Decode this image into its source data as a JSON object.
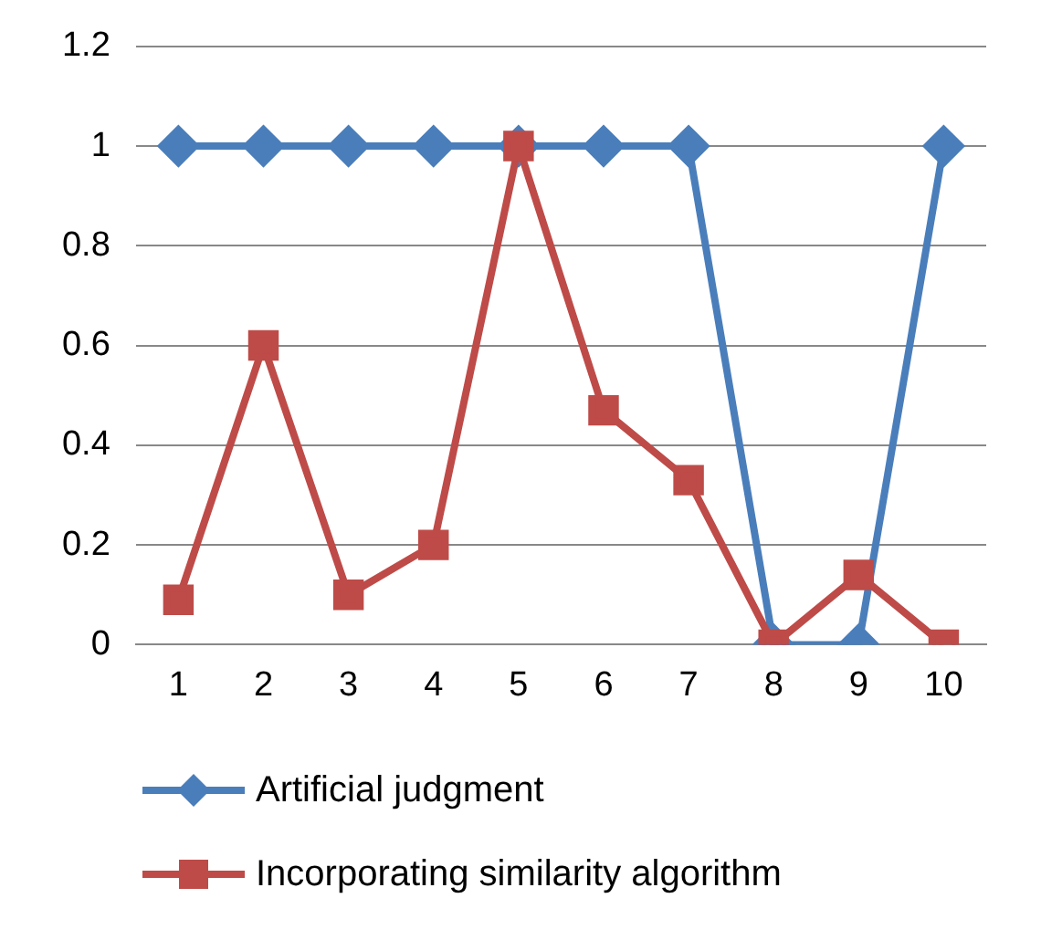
{
  "chart_data": {
    "type": "line",
    "categories": [
      "1",
      "2",
      "3",
      "4",
      "5",
      "6",
      "7",
      "8",
      "9",
      "10"
    ],
    "series": [
      {
        "name": "Artificial judgment",
        "color": "#4a7ebb",
        "marker": "diamond",
        "values": [
          1,
          1,
          1,
          1,
          1,
          1,
          1,
          0,
          0,
          1
        ]
      },
      {
        "name": "Incorporating similarity algorithm",
        "color": "#be4b48",
        "marker": "square",
        "values": [
          0.09,
          0.6,
          0.1,
          0.2,
          1,
          0.47,
          0.33,
          0,
          0.14,
          0
        ]
      }
    ],
    "ylim": [
      0,
      1.2
    ],
    "yticks": [
      {
        "value": 0,
        "label": "0"
      },
      {
        "value": 0.2,
        "label": "0.2"
      },
      {
        "value": 0.4,
        "label": "0.4"
      },
      {
        "value": 0.6,
        "label": "0.6"
      },
      {
        "value": 0.8,
        "label": "0.8"
      },
      {
        "value": 1,
        "label": "1"
      },
      {
        "value": 1.2,
        "label": "1.2"
      }
    ],
    "grid": "y",
    "legend": "bottom",
    "line_style": "solid"
  }
}
